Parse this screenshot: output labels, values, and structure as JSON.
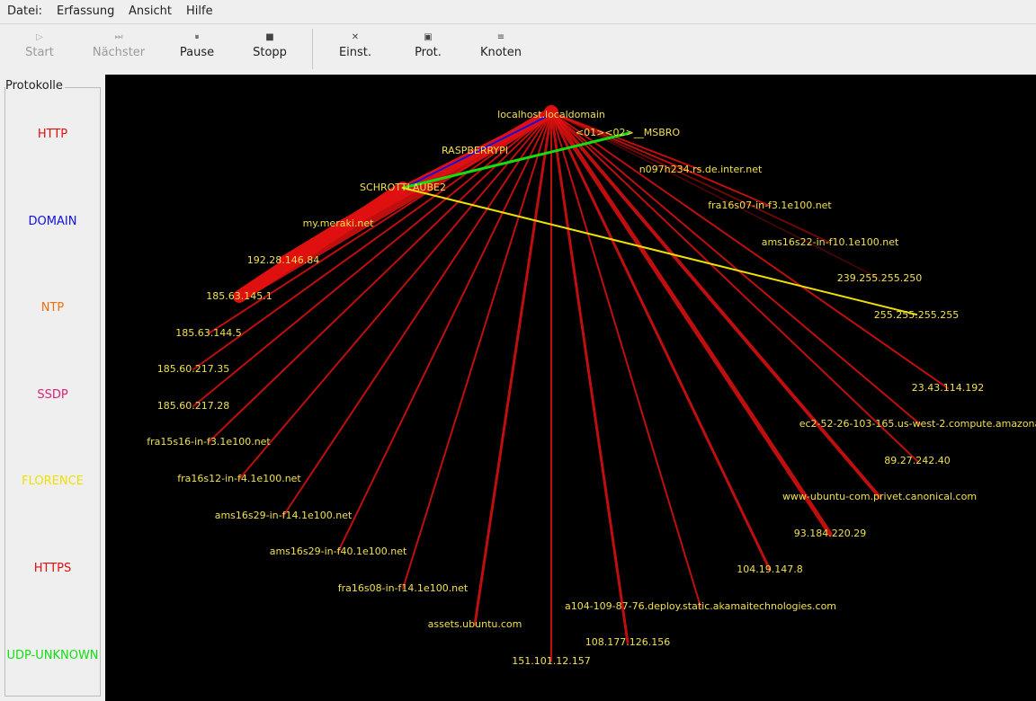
{
  "menu": [
    "Datei:",
    "Erfassung",
    "Ansicht",
    "Hilfe"
  ],
  "toolbar": [
    {
      "label": "Start",
      "enabled": false
    },
    {
      "label": "Nächster",
      "enabled": false
    },
    {
      "label": "Pause",
      "enabled": true
    },
    {
      "label": "Stopp",
      "enabled": true
    },
    {
      "label": "Einst.",
      "enabled": true
    },
    {
      "label": "Prot.",
      "enabled": true
    },
    {
      "label": "Knoten",
      "enabled": true
    }
  ],
  "protocols": {
    "title": "Protokolle",
    "items": [
      {
        "name": "HTTP",
        "color": "#e01010"
      },
      {
        "name": "DOMAIN",
        "color": "#1010e0"
      },
      {
        "name": "NTP",
        "color": "#f07010"
      },
      {
        "name": "SSDP",
        "color": "#e0207a"
      },
      {
        "name": "FLORENCE",
        "color": "#f0e000"
      },
      {
        "name": "HTTPS",
        "color": "#e01010"
      },
      {
        "name": "UDP-UNKNOWN",
        "color": "#10e010"
      }
    ]
  },
  "graph": {
    "nodes": [
      "localhost.localdomain",
      "<01><02>__MSBRO",
      "RASPBERRYPI",
      "SCHROTTLAUBE2",
      "n097h234.rs.de.inter.net",
      "fra16s07-in-f3.1e100.net",
      "my.meraki.net",
      "ams16s22-in-f10.1e100.net",
      "192.28.146.84",
      "239.255.255.250",
      "185.63.145.1",
      "255.255.255.255",
      "185.63.144.5",
      "185.60.217.35",
      "23.43.114.192",
      "185.60.217.28",
      "ec2-52-26-103-165.us-west-2.compute.amazona",
      "fra15s16-in-f3.1e100.net",
      "89.27.242.40",
      "fra16s12-in-f4.1e100.net",
      "www-ubuntu-com.privet.canonical.com",
      "ams16s29-in-f14.1e100.net",
      "93.184.220.29",
      "ams16s29-in-f40.1e100.net",
      "104.19.147.8",
      "fra16s08-in-f14.1e100.net",
      "a104-109-87-76.deploy.static.akamaitechnologies.com",
      "assets.ubuntu.com",
      "108.177.126.156",
      "151.101.12.157"
    ],
    "label_color": "#f0e050",
    "background": "#000000"
  }
}
